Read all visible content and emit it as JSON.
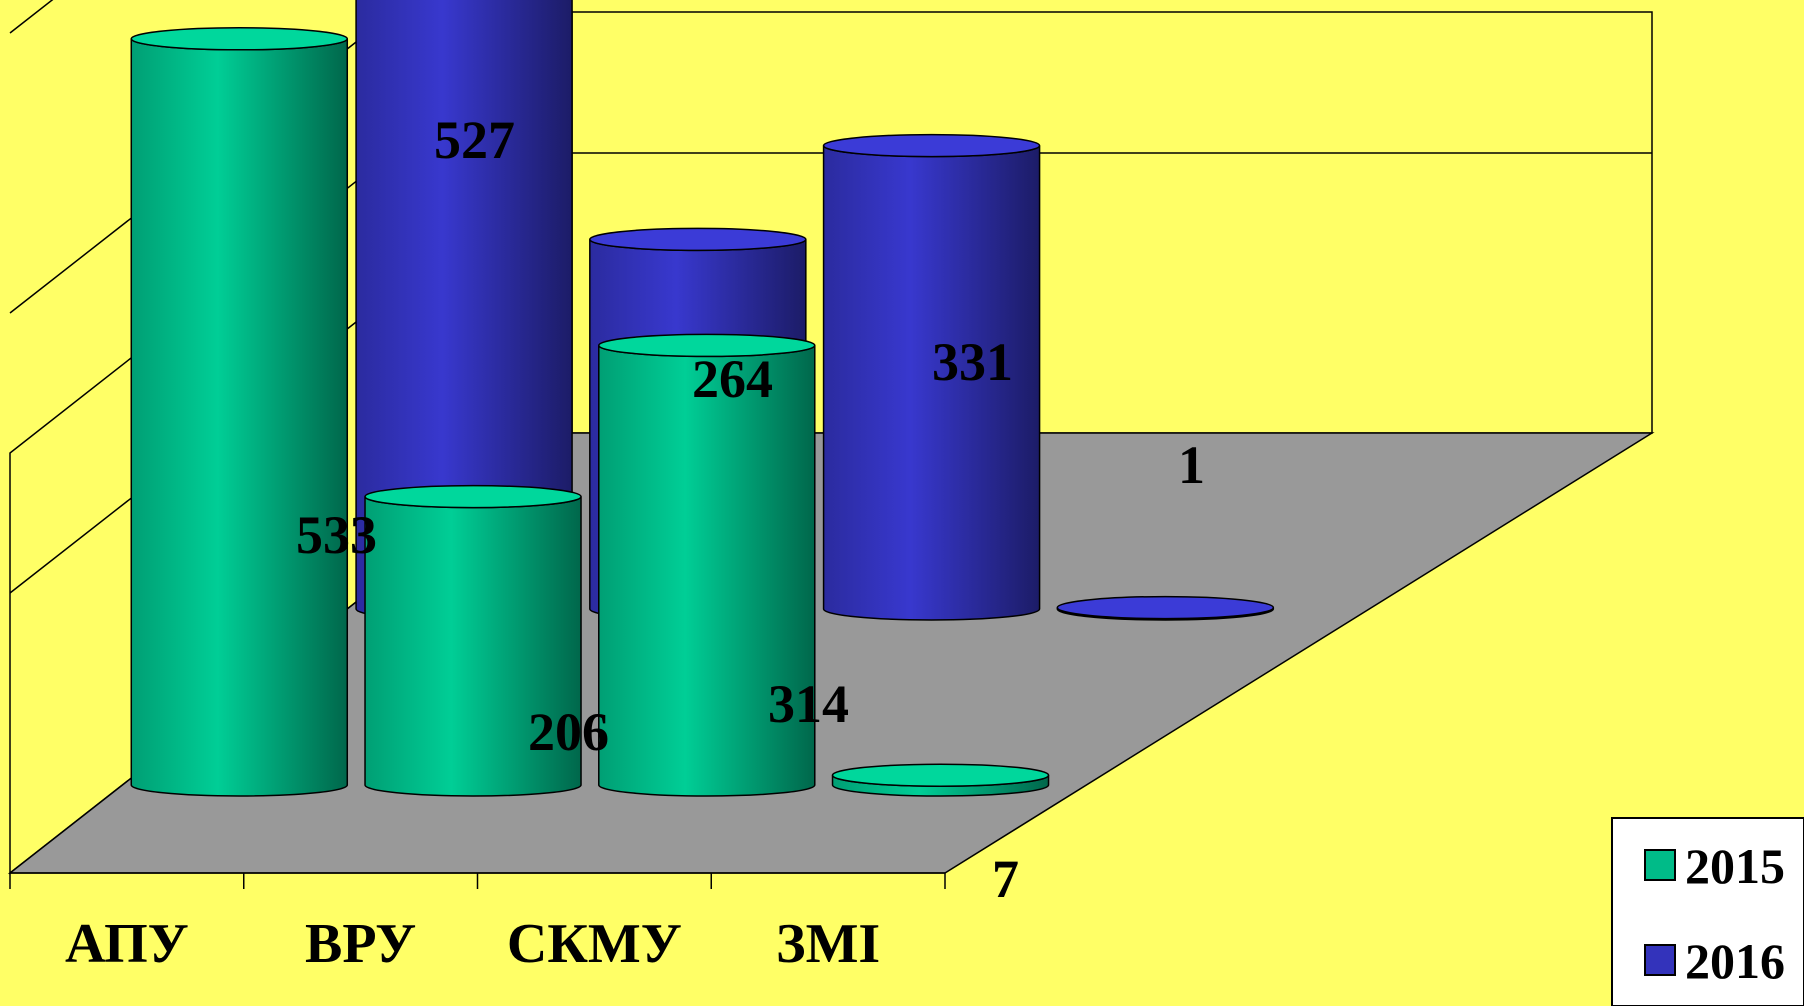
{
  "chart_data": {
    "type": "bar",
    "style": "3d-cylinder",
    "categories": [
      "АПУ",
      "ВРУ",
      "СКМУ",
      "ЗМІ"
    ],
    "series": [
      {
        "name": "2015",
        "values": [
          533,
          206,
          314,
          7
        ],
        "color": "#00BB88"
      },
      {
        "name": "2016",
        "values": [
          527,
          264,
          331,
          1
        ],
        "color": "#3333BB"
      }
    ],
    "ylim": [
      0,
      600
    ],
    "grid": true,
    "legend": "bottom-right",
    "colors": {
      "background": "#FFFF66",
      "floor": "#999999"
    }
  }
}
